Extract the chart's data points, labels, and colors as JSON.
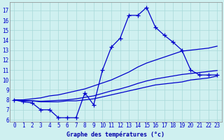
{
  "title": "Graphe des températures (°c)",
  "background_color": "#cff0f0",
  "grid_color": "#a8d8d8",
  "line_color": "#0000cc",
  "hours": [
    0,
    1,
    2,
    3,
    4,
    5,
    6,
    7,
    8,
    9,
    10,
    11,
    12,
    13,
    14,
    15,
    16,
    17,
    18,
    19,
    20,
    21,
    22,
    23
  ],
  "temp_actual": [
    8.0,
    7.8,
    7.7,
    7.0,
    7.0,
    6.2,
    6.2,
    6.2,
    8.7,
    7.5,
    11.0,
    13.3,
    14.2,
    16.5,
    16.5,
    17.3,
    15.3,
    14.5,
    13.8,
    13.0,
    11.0,
    10.5,
    10.5,
    10.5
  ],
  "temp_upper": [
    8.0,
    8.0,
    8.1,
    8.2,
    8.4,
    8.5,
    8.7,
    8.9,
    9.1,
    9.4,
    9.7,
    10.0,
    10.4,
    10.8,
    11.3,
    11.7,
    12.0,
    12.3,
    12.6,
    12.9,
    13.0,
    13.1,
    13.2,
    13.4
  ],
  "temp_lower": [
    8.0,
    7.9,
    7.9,
    7.8,
    7.8,
    7.8,
    7.9,
    7.9,
    8.0,
    8.1,
    8.3,
    8.5,
    8.7,
    8.9,
    9.1,
    9.3,
    9.5,
    9.6,
    9.7,
    9.8,
    10.0,
    10.1,
    10.2,
    10.4
  ],
  "temp_avg": [
    8.0,
    7.95,
    7.9,
    7.85,
    7.9,
    7.95,
    8.0,
    8.1,
    8.25,
    8.4,
    8.65,
    8.9,
    9.1,
    9.35,
    9.65,
    9.9,
    10.1,
    10.25,
    10.4,
    10.55,
    10.65,
    10.75,
    10.85,
    10.95
  ],
  "ylim": [
    5.8,
    17.8
  ],
  "yticks": [
    6,
    7,
    8,
    9,
    10,
    11,
    12,
    13,
    14,
    15,
    16,
    17
  ],
  "xlim": [
    -0.5,
    23.5
  ],
  "xticks": [
    0,
    1,
    2,
    3,
    4,
    5,
    6,
    7,
    8,
    9,
    10,
    11,
    12,
    13,
    14,
    15,
    16,
    17,
    18,
    19,
    20,
    21,
    22,
    23
  ]
}
